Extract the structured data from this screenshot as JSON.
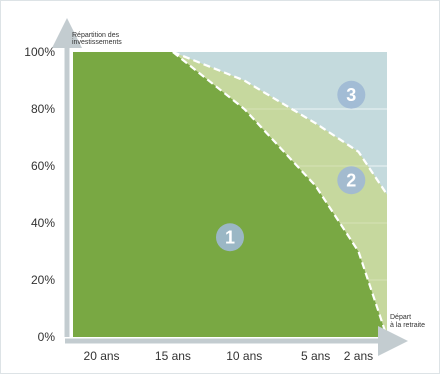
{
  "chart_data": {
    "type": "area",
    "ylabel": [
      "Répartition des",
      "investissements"
    ],
    "xlabel": [
      "Départ",
      "à la retraite"
    ],
    "yticks": [
      "0%",
      "20%",
      "40%",
      "60%",
      "80%",
      "100%"
    ],
    "ylim": [
      0,
      100
    ],
    "xlim": [
      22,
      0
    ],
    "x_ticks": [
      {
        "label": "20 ans",
        "value": 20
      },
      {
        "label": "15 ans",
        "value": 15
      },
      {
        "label": "10 ans",
        "value": 10
      },
      {
        "label": "5 ans",
        "value": 5
      },
      {
        "label": "2 ans",
        "value": 2
      }
    ],
    "grid": true,
    "series": [
      {
        "zone": "1",
        "color": "#79a843",
        "values": [
          [
            22,
            100
          ],
          [
            15,
            100
          ],
          [
            10,
            80
          ],
          [
            5,
            53
          ],
          [
            2,
            30
          ],
          [
            0,
            0
          ]
        ]
      },
      {
        "zone": "2",
        "color": "#c6d89e",
        "values": [
          [
            22,
            100
          ],
          [
            15,
            100
          ],
          [
            10,
            90
          ],
          [
            5,
            75
          ],
          [
            2,
            65
          ],
          [
            0,
            50
          ]
        ]
      },
      {
        "zone": "3",
        "color": "#c4dadd",
        "values": [
          [
            22,
            100
          ],
          [
            0,
            100
          ]
        ]
      }
    ],
    "zone_labels": [
      {
        "text": "1",
        "x": 11,
        "y": 35
      },
      {
        "text": "2",
        "x": 2.5,
        "y": 55
      },
      {
        "text": "3",
        "x": 2.5,
        "y": 85
      }
    ]
  }
}
